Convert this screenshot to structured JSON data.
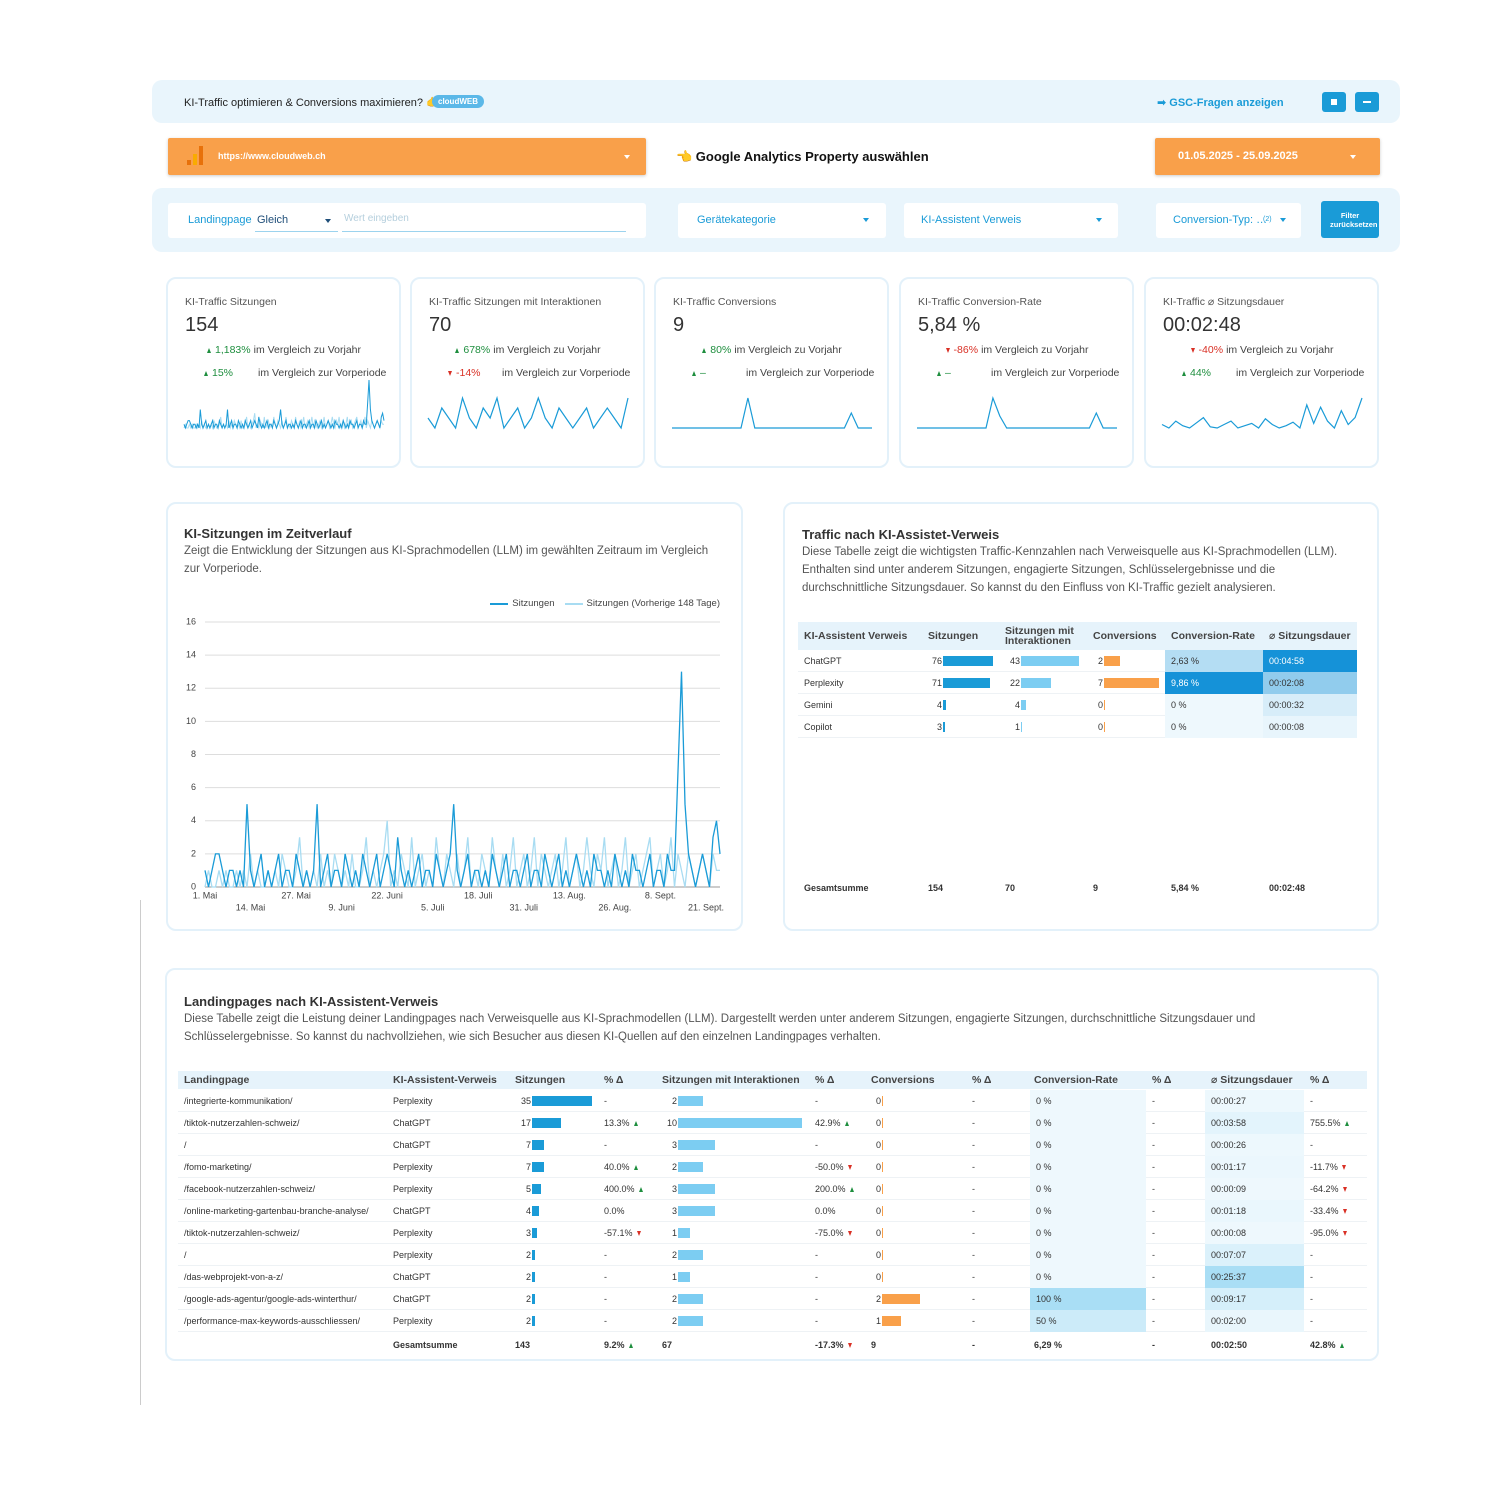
{
  "header": {
    "promo": "KI-Traffic optimieren & Conversions maximieren? 👉",
    "logo": "cloudWEB",
    "gsc_link": "➡ GSC-Fragen anzeigen"
  },
  "property": {
    "url": "https://www.cloudweb.ch",
    "label": "👈 Google Analytics Property auswählen"
  },
  "date_range": "01.05.2025 - 25.09.2025",
  "filters": {
    "landingpage": "Landingpage",
    "operator": "Gleich",
    "placeholder": "Wert eingeben",
    "device": "Gerätekategorie",
    "assistant": "KI-Assistent Verweis",
    "conversion_type": "Conversion-Typ: …",
    "conversion_count": "(2)",
    "reset": "Filter zurücksetzen"
  },
  "kpis": [
    {
      "title": "KI-Traffic Sitzungen",
      "value": "154",
      "yoy": {
        "value": "1,183%",
        "trend": "up",
        "label": "im Vergleich zu Vorjahr"
      },
      "prev": {
        "value": "15%",
        "trend": "up",
        "label": "im Vergleich zur Vorperiode"
      }
    },
    {
      "title": "KI-Traffic Sitzungen mit Interaktionen",
      "value": "70",
      "yoy": {
        "value": "678%",
        "trend": "up",
        "label": "im Vergleich zu Vorjahr"
      },
      "prev": {
        "value": "-14%",
        "trend": "down",
        "label": "im Vergleich zur Vorperiode"
      },
      "spark": [
        1,
        0,
        2,
        1,
        0,
        3,
        1,
        0,
        2,
        1,
        3,
        0,
        1,
        2,
        0,
        1,
        3,
        1,
        0,
        2,
        1,
        0,
        1,
        2,
        0,
        1,
        2,
        1,
        0,
        3
      ]
    },
    {
      "title": "KI-Traffic Conversions",
      "value": "9",
      "yoy": {
        "value": "80%",
        "trend": "up",
        "label": "im Vergleich zu Vorjahr"
      },
      "prev": {
        "value": "–",
        "trend": "up",
        "label": "im Vergleich zur Vorperiode"
      },
      "spark": [
        0,
        0,
        0,
        0,
        0,
        0,
        0,
        0,
        0,
        0,
        0,
        2,
        0,
        0,
        0,
        0,
        0,
        0,
        0,
        0,
        0,
        0,
        0,
        0,
        0,
        0,
        1,
        0,
        0,
        0
      ]
    },
    {
      "title": "KI-Traffic Conversion-Rate",
      "value": "5,84 %",
      "yoy": {
        "value": "-86%",
        "trend": "down",
        "label": "im Vergleich zu Vorjahr"
      },
      "prev": {
        "value": "–",
        "trend": "up",
        "label": "im Vergleich zur Vorperiode"
      },
      "spark": [
        0,
        0,
        0,
        0,
        0,
        0,
        0,
        0,
        0,
        0,
        0,
        100,
        40,
        0,
        0,
        0,
        0,
        0,
        0,
        0,
        0,
        0,
        0,
        0,
        0,
        0,
        50,
        0,
        0,
        0
      ]
    },
    {
      "title": "KI-Traffic ⌀ Sitzungsdauer",
      "value": "00:02:48",
      "yoy": {
        "value": "-40%",
        "trend": "down",
        "label": "im Vergleich zu Vorjahr"
      },
      "prev": {
        "value": "44%",
        "trend": "up",
        "label": "im Vergleich zur Vorperiode"
      },
      "spark": [
        30,
        0,
        60,
        20,
        0,
        45,
        90,
        10,
        0,
        30,
        60,
        0,
        20,
        40,
        0,
        80,
        30,
        0,
        20,
        50,
        0,
        200,
        40,
        180,
        60,
        0,
        150,
        30,
        90,
        260
      ]
    }
  ],
  "chart_data": {
    "type": "line",
    "title": "KI-Sitzungen im Zeitverlauf",
    "subtitle": "Zeigt die Entwicklung der Sitzungen aus KI-Sprachmodellen (LLM) im gewählten Zeitraum im Vergleich zur Vorperiode.",
    "categories": [
      "1. Mai",
      null,
      null,
      null,
      null,
      null,
      null,
      null,
      null,
      null,
      null,
      null,
      null,
      "14. Mai",
      null,
      null,
      null,
      null,
      null,
      null,
      null,
      null,
      null,
      null,
      null,
      null,
      "27. Mai",
      null,
      null,
      null,
      null,
      null,
      null,
      null,
      null,
      null,
      null,
      null,
      null,
      "9. Juni",
      null,
      null,
      null,
      null,
      null,
      null,
      null,
      null,
      null,
      null,
      null,
      null,
      "22. Juni",
      null,
      null,
      null,
      null,
      null,
      null,
      null,
      null,
      null,
      null,
      null,
      null,
      "5. Juli",
      null,
      null,
      null,
      null,
      null,
      null,
      null,
      null,
      null,
      null,
      null,
      null,
      "18. Juli",
      null,
      null,
      null,
      null,
      null,
      null,
      null,
      null,
      null,
      null,
      null,
      null,
      "31. Juli",
      null,
      null,
      null,
      null,
      null,
      null,
      null,
      null,
      null,
      null,
      null,
      null,
      "13. Aug.",
      null,
      null,
      null,
      null,
      null,
      null,
      null,
      null,
      null,
      null,
      null,
      null,
      "26. Aug.",
      null,
      null,
      null,
      null,
      null,
      null,
      null,
      null,
      null,
      null,
      null,
      null,
      "8. Sept.",
      null,
      null,
      null,
      null,
      null,
      null,
      null,
      null,
      null,
      null,
      null,
      null,
      "21. Sept.",
      null,
      null,
      null,
      null
    ],
    "series": [
      {
        "name": "Sitzungen",
        "color": "#1a9bd7",
        "values": [
          1,
          0,
          1,
          2,
          2,
          1,
          0,
          1,
          1,
          0,
          1,
          0,
          5,
          1,
          0,
          1,
          2,
          0,
          1,
          0,
          1,
          2,
          0,
          1,
          1,
          0,
          2,
          1,
          0,
          1,
          0,
          1,
          5,
          0,
          1,
          2,
          0,
          1,
          1,
          0,
          2,
          1,
          0,
          1,
          0,
          2,
          1,
          0,
          1,
          2,
          0,
          1,
          2,
          1,
          0,
          3,
          1,
          0,
          1,
          0,
          1,
          2,
          0,
          1,
          1,
          0,
          2,
          1,
          0,
          1,
          2,
          5,
          1,
          0,
          1,
          2,
          0,
          1,
          1,
          0,
          1,
          0,
          2,
          1,
          0,
          1,
          2,
          0,
          1,
          1,
          0,
          1,
          2,
          0,
          1,
          1,
          0,
          2,
          1,
          0,
          1,
          2,
          0,
          1,
          0,
          1,
          2,
          1,
          0,
          1,
          0,
          2,
          1,
          1,
          0,
          1,
          0,
          2,
          1,
          0,
          1,
          0,
          2,
          1,
          1,
          0,
          1,
          2,
          0,
          1,
          1,
          0,
          2,
          1,
          1,
          7,
          13,
          5,
          2,
          1,
          0,
          1,
          2,
          1,
          0,
          3,
          4,
          2
        ]
      },
      {
        "name": "Sitzungen (Vorherige 148 Tage)",
        "color": "#a8dcf2",
        "values": [
          0,
          1,
          0,
          0,
          1,
          0,
          1,
          0,
          0,
          1,
          0,
          1,
          0,
          2,
          0,
          1,
          0,
          0,
          1,
          0,
          1,
          0,
          2,
          1,
          0,
          0,
          1,
          3,
          0,
          1,
          0,
          1,
          0,
          2,
          0,
          1,
          0,
          2,
          1,
          0,
          1,
          0,
          2,
          0,
          0,
          1,
          3,
          0,
          1,
          0,
          1,
          2,
          4,
          0,
          1,
          0,
          2,
          1,
          0,
          3,
          0,
          1,
          2,
          0,
          1,
          0,
          3,
          1,
          0,
          2,
          1,
          0,
          2,
          0,
          1,
          3,
          0,
          1,
          0,
          2,
          1,
          0,
          3,
          1,
          0,
          2,
          0,
          1,
          3,
          0,
          1,
          2,
          0,
          1,
          3,
          0,
          2,
          1,
          0,
          1,
          2,
          0,
          1,
          3,
          0,
          1,
          2,
          0,
          1,
          3,
          1,
          0,
          2,
          1,
          3,
          0,
          1,
          2,
          0,
          1,
          3,
          0,
          1,
          2,
          0,
          1,
          2,
          3,
          0,
          1,
          2,
          0,
          1,
          3,
          0,
          2,
          1,
          0,
          2,
          1,
          0,
          1,
          2,
          1,
          0,
          2,
          1,
          1
        ]
      }
    ],
    "ylim": [
      0,
      16
    ],
    "yticks": [
      0,
      2,
      4,
      6,
      8,
      10,
      12,
      14,
      16
    ],
    "grid": true,
    "legend": "top-right"
  },
  "traffic_table": {
    "title": "Traffic nach KI-Assistet-Verweis",
    "description": "Diese Tabelle zeigt die wichtigsten Traffic-Kennzahlen nach Verweisquelle aus KI-Sprachmodellen (LLM). Enthalten sind unter anderem Sitzungen, engagierte Sitzungen, Schlüsselergebnisse und die durchschnittliche Sitzungsdauer. So kannst du den Einfluss von KI-Traffic gezielt analysieren.",
    "headers": [
      "KI-Assistent Verweis",
      "Sitzungen",
      "Sitzungen mit Interaktionen",
      "Conversions",
      "Conversion-Rate",
      "⌀ Sitzungsdauer"
    ],
    "rows": [
      [
        "ChatGPT",
        76,
        43,
        2,
        "2,63 %",
        "00:04:58"
      ],
      [
        "Perplexity",
        71,
        22,
        7,
        "9,86 %",
        "00:02:08"
      ],
      [
        "Gemini",
        4,
        4,
        0,
        "0 %",
        "00:00:32"
      ],
      [
        "Copilot",
        3,
        1,
        0,
        "0 %",
        "00:00:08"
      ]
    ],
    "total": [
      "Gesamtsumme",
      154,
      70,
      9,
      "5,84 %",
      "00:02:48"
    ]
  },
  "landing_table": {
    "title": "Landingpages nach KI-Assistent-Verweis",
    "description": "Diese Tabelle zeigt die Leistung deiner Landingpages nach Verweisquelle aus KI-Sprachmodellen (LLM). Dargestellt werden unter anderem Sitzungen, engagierte Sitzungen, durchschnittliche Sitzungsdauer und Schlüsselergebnisse. So kannst du nachvollziehen, wie sich Besucher aus diesen KI-Quellen auf den einzelnen Landingpages verhalten.",
    "headers": [
      "Landingpage",
      "KI-Assistent-Verweis",
      "Sitzungen",
      "% Δ",
      "Sitzungen mit Interaktionen",
      "% Δ",
      "Conversions",
      "% Δ",
      "Conversion-Rate",
      "% Δ",
      "⌀ Sitzungsdauer",
      "% Δ"
    ],
    "rows": [
      [
        "/integrierte-kommunikation/",
        "Perplexity",
        35,
        "-",
        2,
        "-",
        0,
        "-",
        "0 %",
        "-",
        "00:00:27",
        "-"
      ],
      [
        "/tiktok-nutzerzahlen-schweiz/",
        "ChatGPT",
        17,
        "13.3%",
        10,
        "42.9%",
        0,
        "-",
        "0 %",
        "-",
        "00:03:58",
        "755.5%"
      ],
      [
        "/",
        "ChatGPT",
        7,
        "-",
        3,
        "-",
        0,
        "-",
        "0 %",
        "-",
        "00:00:26",
        "-"
      ],
      [
        "/fomo-marketing/",
        "Perplexity",
        7,
        "40.0%",
        2,
        "-50.0%",
        0,
        "-",
        "0 %",
        "-",
        "00:01:17",
        "-11.7%"
      ],
      [
        "/facebook-nutzerzahlen-schweiz/",
        "Perplexity",
        5,
        "400.0%",
        3,
        "200.0%",
        0,
        "-",
        "0 %",
        "-",
        "00:00:09",
        "-64.2%"
      ],
      [
        "/online-marketing-gartenbau-branche-analyse/",
        "ChatGPT",
        4,
        "0.0%",
        3,
        "0.0%",
        0,
        "-",
        "0 %",
        "-",
        "00:01:18",
        "-33.4%"
      ],
      [
        "/tiktok-nutzerzahlen-schweiz/",
        "Perplexity",
        3,
        "-57.1%",
        1,
        "-75.0%",
        0,
        "-",
        "0 %",
        "-",
        "00:00:08",
        "-95.0%"
      ],
      [
        "/",
        "Perplexity",
        2,
        "-",
        2,
        "-",
        0,
        "-",
        "0 %",
        "-",
        "00:07:07",
        "-"
      ],
      [
        "/das-webprojekt-von-a-z/",
        "ChatGPT",
        2,
        "-",
        1,
        "-",
        0,
        "-",
        "0 %",
        "-",
        "00:25:37",
        "-"
      ],
      [
        "/google-ads-agentur/google-ads-winterthur/",
        "ChatGPT",
        2,
        "-",
        2,
        "-",
        2,
        "-",
        "100 %",
        "-",
        "00:09:17",
        "-"
      ],
      [
        "/performance-max-keywords-ausschliessen/",
        "Perplexity",
        2,
        "-",
        2,
        "-",
        1,
        "-",
        "50 %",
        "-",
        "00:02:00",
        "-"
      ]
    ],
    "total": [
      "Gesamtsumme",
      143,
      "9.2%",
      67,
      "-17.3%",
      9,
      "-",
      "6,29 %",
      "-",
      "00:02:50",
      "42.8%"
    ]
  }
}
